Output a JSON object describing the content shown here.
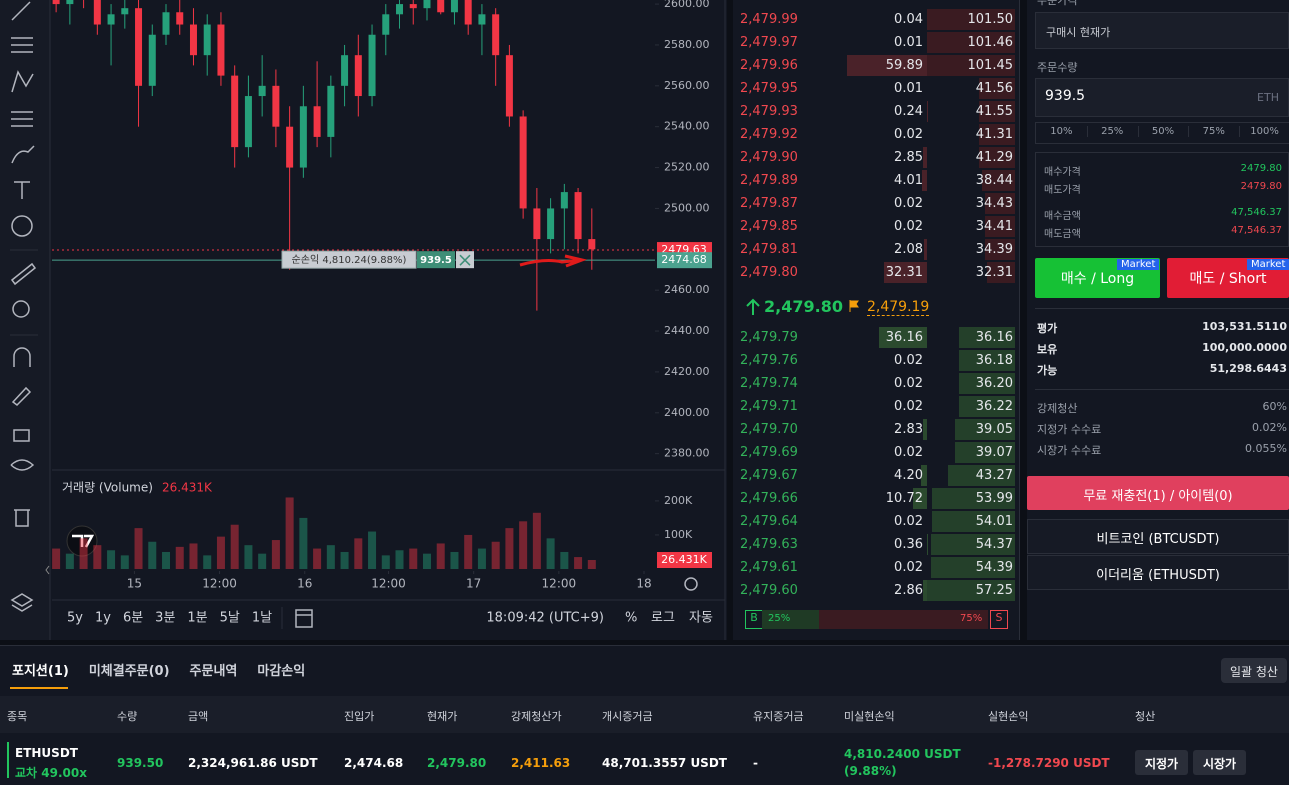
{
  "chart_data": {
    "type": "candlestick",
    "open": [
      2605,
      2600,
      2608,
      2603,
      2590,
      2595,
      2598,
      2560,
      2585,
      2596,
      2590,
      2575,
      2590,
      2565,
      2530,
      2555,
      2560,
      2540,
      2520,
      2550,
      2535,
      2560,
      2575,
      2555,
      2585,
      2595,
      2600,
      2598,
      2604,
      2596,
      2605,
      2590,
      2595,
      2575,
      2545,
      2500,
      2485,
      2500,
      2508,
      2485
    ],
    "high": [
      2612,
      2610,
      2615,
      2609,
      2600,
      2605,
      2602,
      2590,
      2600,
      2605,
      2598,
      2595,
      2596,
      2570,
      2565,
      2575,
      2568,
      2550,
      2560,
      2572,
      2565,
      2580,
      2585,
      2590,
      2600,
      2610,
      2612,
      2606,
      2610,
      2608,
      2610,
      2600,
      2598,
      2580,
      2548,
      2510,
      2505,
      2512,
      2510,
      2500
    ],
    "low": [
      2596,
      2590,
      2598,
      2585,
      2570,
      2588,
      2540,
      2555,
      2580,
      2585,
      2570,
      2565,
      2560,
      2520,
      2525,
      2545,
      2530,
      2470,
      2515,
      2530,
      2525,
      2550,
      2545,
      2550,
      2575,
      2588,
      2590,
      2592,
      2595,
      2590,
      2585,
      2575,
      2560,
      2540,
      2495,
      2450,
      2478,
      2480,
      2478,
      2470
    ],
    "close": [
      2600,
      2608,
      2603,
      2590,
      2595,
      2598,
      2560,
      2585,
      2596,
      2590,
      2575,
      2590,
      2565,
      2530,
      2555,
      2560,
      2540,
      2520,
      2550,
      2535,
      2560,
      2575,
      2555,
      2585,
      2595,
      2600,
      2598,
      2604,
      2596,
      2605,
      2590,
      2595,
      2575,
      2545,
      2500,
      2485,
      2500,
      2508,
      2485,
      2480
    ],
    "up_color": "#26a17b",
    "down_color": "#f23645",
    "ylim": [
      2372,
      2602
    ],
    "yticks": [
      {
        "value": 2600,
        "label": "2600.00"
      },
      {
        "value": 2580,
        "label": "2580.00"
      },
      {
        "value": 2560,
        "label": "2560.00"
      },
      {
        "value": 2540,
        "label": "2540.00"
      },
      {
        "value": 2520,
        "label": "2520.00"
      },
      {
        "value": 2500,
        "label": "2500.00"
      },
      {
        "value": 2460,
        "label": "2460.00"
      },
      {
        "value": 2440,
        "label": "2440.00"
      },
      {
        "value": 2420,
        "label": "2420.00"
      },
      {
        "value": 2400,
        "label": "2400.00"
      },
      {
        "value": 2380,
        "label": "2380.00"
      }
    ],
    "xlim": [
      -0.3,
      43.6
    ],
    "xticks": [
      {
        "value": 5.7,
        "label": "15"
      },
      {
        "value": 11.9,
        "label": "12:00"
      },
      {
        "value": 18.1,
        "label": "16"
      },
      {
        "value": 24.2,
        "label": "12:00"
      },
      {
        "value": 30.4,
        "label": "17"
      },
      {
        "value": 36.6,
        "label": "12:00"
      },
      {
        "value": 42.8,
        "label": "18"
      }
    ],
    "price_lines": [
      {
        "value": 2479.63,
        "color": "#f23645"
      },
      {
        "value": 2474.68,
        "color": "#4ba28f"
      }
    ],
    "position_label": {
      "pnl": "순손익 4,810.24(9.88%)",
      "qty": "939.5"
    },
    "volume": {
      "title": "거래량 (Volume)",
      "values": [
        60,
        45,
        90,
        70,
        55,
        40,
        120,
        80,
        50,
        65,
        75,
        40,
        95,
        130,
        70,
        45,
        85,
        210,
        150,
        60,
        70,
        50,
        90,
        110,
        40,
        55,
        60,
        45,
        75,
        50,
        100,
        60,
        80,
        120,
        140,
        165,
        90,
        50,
        35,
        26.431
      ],
      "last_label": "26.431K",
      "ylim": [
        0,
        276
      ],
      "yticks": [
        {
          "value": 200,
          "label": "200K"
        },
        {
          "value": 100,
          "label": "100K"
        }
      ]
    },
    "timeframes": [
      "5y",
      "1y",
      "6분",
      "3분",
      "1분",
      "5날",
      "1날"
    ],
    "clock": "18:09:42 (UTC+9)",
    "scale_options": [
      "%",
      "로그",
      "자동"
    ]
  },
  "order_book": {
    "asks": [
      [
        "2,479.99",
        "0.04",
        "101.50"
      ],
      [
        "2,479.97",
        "0.01",
        "101.46"
      ],
      [
        "2,479.96",
        "59.89",
        "101.45"
      ],
      [
        "2,479.95",
        "0.01",
        "41.56"
      ],
      [
        "2,479.93",
        "0.24",
        "41.55"
      ],
      [
        "2,479.92",
        "0.02",
        "41.31"
      ],
      [
        "2,479.90",
        "2.85",
        "41.29"
      ],
      [
        "2,479.89",
        "4.01",
        "38.44"
      ],
      [
        "2,479.87",
        "0.02",
        "34.43"
      ],
      [
        "2,479.85",
        "0.02",
        "34.41"
      ],
      [
        "2,479.81",
        "2.08",
        "34.39"
      ],
      [
        "2,479.80",
        "32.31",
        "32.31"
      ]
    ],
    "last_price": "2,479.80",
    "mark_price": "2,479.19",
    "bids": [
      [
        "2,479.79",
        "36.16",
        "36.16"
      ],
      [
        "2,479.76",
        "0.02",
        "36.18"
      ],
      [
        "2,479.74",
        "0.02",
        "36.20"
      ],
      [
        "2,479.71",
        "0.02",
        "36.22"
      ],
      [
        "2,479.70",
        "2.83",
        "39.05"
      ],
      [
        "2,479.69",
        "0.02",
        "39.07"
      ],
      [
        "2,479.67",
        "4.20",
        "43.27"
      ],
      [
        "2,479.66",
        "10.72",
        "53.99"
      ],
      [
        "2,479.64",
        "0.02",
        "54.01"
      ],
      [
        "2,479.63",
        "0.36",
        "54.37"
      ],
      [
        "2,479.61",
        "0.02",
        "54.39"
      ],
      [
        "2,479.60",
        "2.86",
        "57.25"
      ]
    ],
    "buy_label": "B",
    "sell_label": "S",
    "buy_ratio": {
      "value": 25,
      "label": "25%"
    },
    "sell_ratio": {
      "value": 75,
      "label": "75%"
    }
  },
  "order_form": {
    "price_label": "주문가격",
    "price_mode": "구매시 현재가",
    "qty_label": "주문수량",
    "qty": "939.5",
    "unit": "ETH",
    "percents": [
      "10%",
      "25%",
      "50%",
      "75%",
      "100%"
    ],
    "summary": [
      [
        "매수가격",
        "2479.80"
      ],
      [
        "매도가격",
        "2479.80"
      ],
      [
        "매수금액",
        "47,546.37"
      ],
      [
        "매도금액",
        "47,546.37"
      ]
    ],
    "buy_button": "매수 / Long",
    "sell_button": "매도 / Short",
    "button_tag": "Market",
    "balances": [
      [
        "평가",
        "103,531.5110"
      ],
      [
        "보유",
        "100,000.0000"
      ],
      [
        "가능",
        "51,298.6443"
      ]
    ],
    "fees": [
      [
        "강제청산",
        "60%"
      ],
      [
        "지정가 수수료",
        "0.02%"
      ],
      [
        "시장가 수수료",
        "0.055%"
      ]
    ],
    "recharge": "무료 재충전(1) / 아이템(0)",
    "markets": [
      "비트코인 (BTCUSDT)",
      "이더리움 (ETHUSDT)"
    ]
  },
  "positions": {
    "tabs": [
      "포지션(1)",
      "미체결주문(0)",
      "주문내역",
      "마감손익"
    ],
    "close_all": "일괄 청산",
    "headers": [
      "종목",
      "수량",
      "금액",
      "진입가",
      "현재가",
      "강제청산가",
      "개시증거금",
      "유지증거금",
      "미실현손익",
      "실현손익",
      "청산"
    ],
    "row": {
      "symbol": "ETHUSDT",
      "mode": "교차 49.00x",
      "qty": "939.50",
      "amount": "2,324,961.86 USDT",
      "entry": "2,474.68",
      "mark": "2,479.80",
      "liq": "2,411.63",
      "initial_margin": "48,701.3557 USDT",
      "maint_margin": "-",
      "unrealized": "4,810.2400 USDT",
      "unrealized_pct": "(9.88%)",
      "realized": "-1,278.7290 USDT",
      "actions": [
        "지정가",
        "시장가"
      ]
    }
  }
}
